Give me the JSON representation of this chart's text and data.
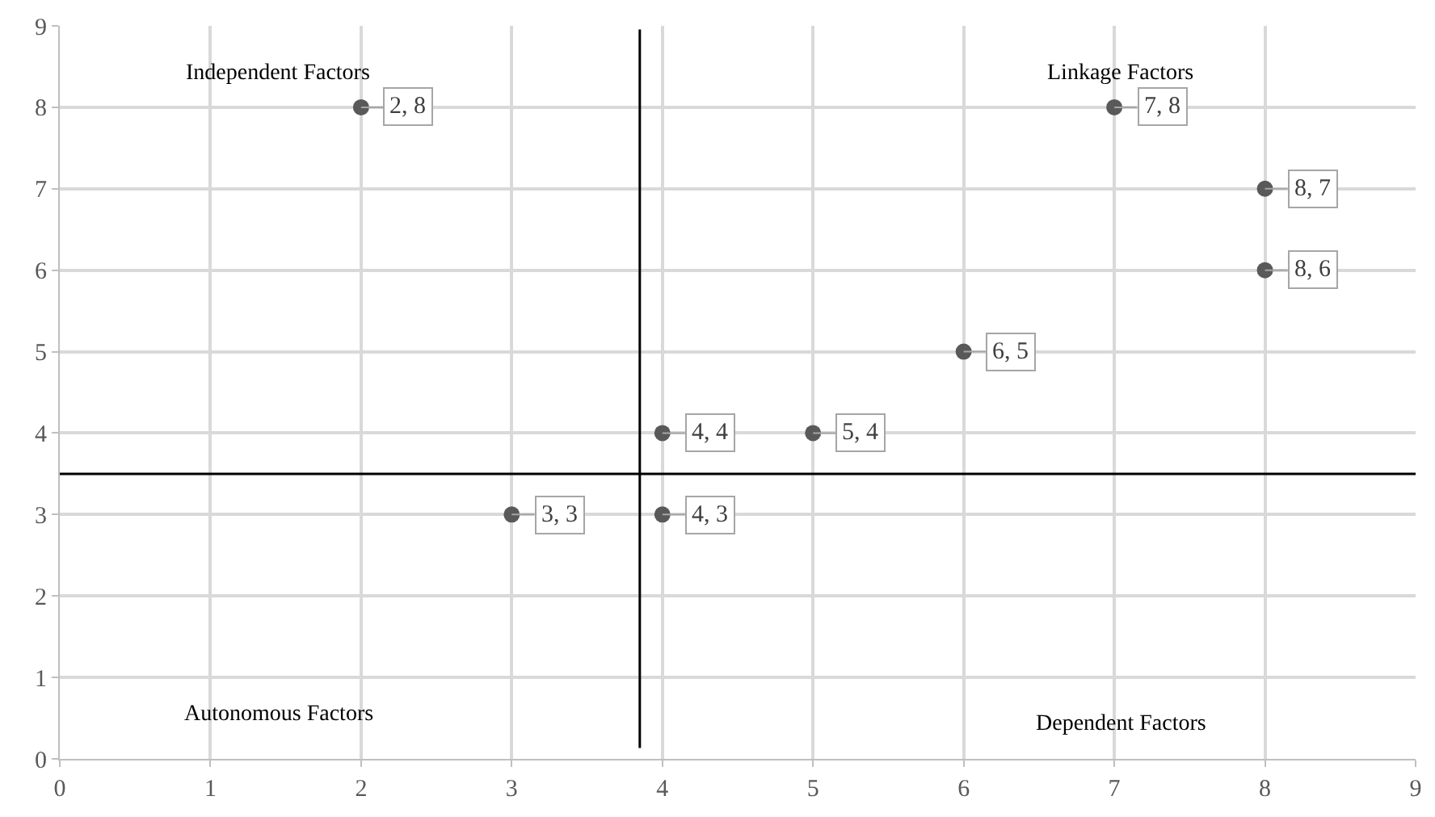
{
  "chart_data": {
    "type": "scatter",
    "x": [
      2,
      7,
      8,
      8,
      6,
      4,
      5,
      3,
      4
    ],
    "series": [
      {
        "color": "#595959",
        "values": [
          8,
          8,
          7,
          6,
          5,
          4,
          4,
          3,
          3
        ]
      }
    ],
    "value_labels": [
      "2, 8",
      "7, 8",
      "8, 7",
      "8, 6",
      "6, 5",
      "4, 4",
      "5, 4",
      "3, 3",
      "4, 3"
    ],
    "xlim": [
      0,
      9
    ],
    "ylim": [
      0,
      9
    ],
    "xticks": [
      0,
      1,
      2,
      3,
      4,
      5,
      6,
      7,
      8,
      9
    ],
    "yticks": [
      0,
      1,
      2,
      3,
      4,
      5,
      6,
      7,
      8,
      9
    ],
    "grid": true,
    "marker": "circle",
    "ref_lines": [
      {
        "axis": "x",
        "value": 3.85,
        "color": "#000000"
      },
      {
        "axis": "y",
        "value": 3.5,
        "color": "#000000"
      }
    ],
    "annotations": [
      "Independent Factors",
      "Linkage Factors",
      "Autonomous Factors",
      "Dependent Factors"
    ]
  }
}
